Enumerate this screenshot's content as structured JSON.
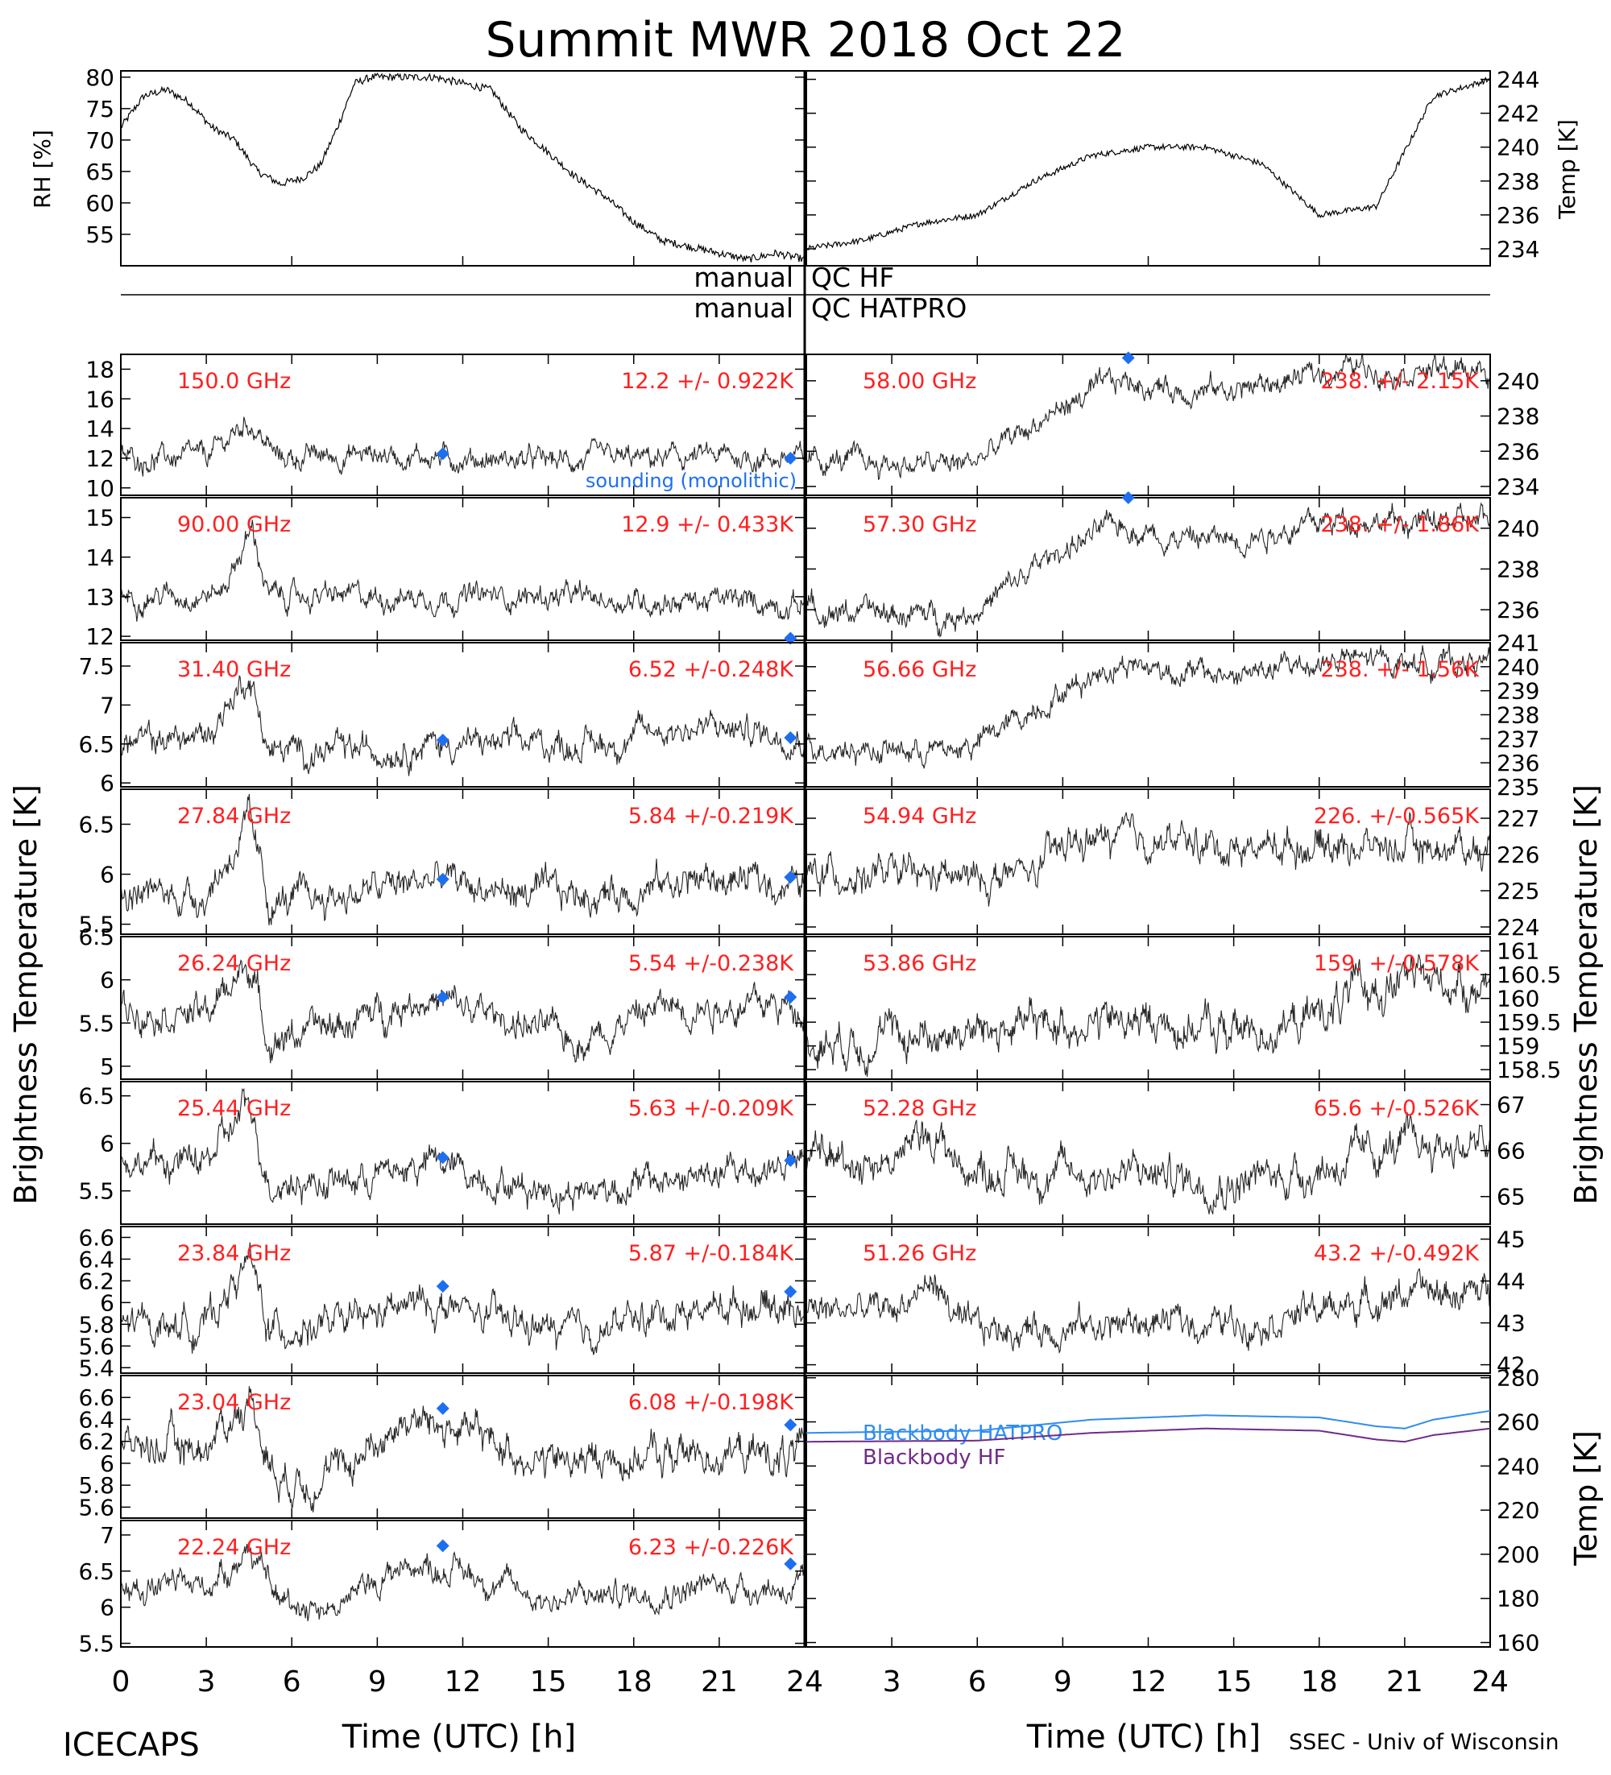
{
  "page": {
    "title": "Summit MWR 2018 Oct 22",
    "footer_left": "ICECAPS",
    "footer_right": "SSEC - Univ of Wisconsin",
    "left_ylabel": "Brightness Temperature [K]",
    "right_ylabel": "Brightness Temperature [K]",
    "xlabel": "Time (UTC) [h]",
    "qc_rows": [
      {
        "left": "manual",
        "right": "QC HF"
      },
      {
        "left": "manual",
        "right": "QC HATPRO"
      }
    ],
    "sounding_label": "sounding (monolithic)",
    "colors": {
      "freq_label": "#ff2020",
      "sounding": "#1e6ff0",
      "blackbody_hatpro": "#2f8cf2",
      "blackbody_hf": "#702a8a",
      "data": "#000000"
    }
  },
  "chart_data": [
    {
      "id": "rh",
      "type": "line",
      "ylabel": "RH [%]",
      "ylim": [
        50,
        81
      ],
      "yticks": [
        55,
        60,
        65,
        70,
        75,
        80
      ],
      "xlim": [
        0,
        12
      ],
      "x": [
        0,
        0.4,
        0.8,
        1.2,
        1.6,
        2.0,
        2.4,
        2.8,
        3.2,
        3.5,
        3.8,
        4.1,
        4.4,
        4.7,
        5.0,
        5.5,
        6.0,
        6.5,
        7.0,
        7.5,
        8.0,
        8.5,
        9.0,
        9.5,
        10.0,
        10.5,
        11.0,
        11.5,
        12.0
      ],
      "y": [
        72,
        77,
        78,
        76,
        72,
        70,
        65,
        63,
        64,
        66,
        72,
        79,
        80,
        80,
        80,
        80,
        79,
        78,
        72,
        68,
        64,
        61,
        57,
        54,
        53,
        52,
        51,
        52,
        51
      ]
    },
    {
      "id": "temp",
      "type": "line",
      "ylabel": "Temp [K]",
      "ylim": [
        233,
        244.5
      ],
      "yticks": [
        234,
        236,
        238,
        240,
        242,
        244
      ],
      "xlim": [
        12,
        24
      ],
      "x": [
        12,
        13,
        14,
        15,
        16,
        17,
        18,
        19,
        20,
        21,
        22,
        23,
        24
      ],
      "y": [
        234,
        234.5,
        235.5,
        236,
        238,
        239.5,
        240,
        240,
        239,
        236,
        236.5,
        243,
        244
      ]
    },
    {
      "id": "ch150",
      "label": "150.0 GHz",
      "stat": "12.2 +/- 0.922K",
      "side": "left",
      "ylim": [
        9.5,
        19
      ],
      "yticks": [
        10,
        12,
        14,
        16,
        18
      ],
      "profile": {
        "x": [
          0,
          3,
          4.5,
          5.5,
          9,
          12,
          15,
          18,
          21,
          24
        ],
        "y": [
          12,
          12,
          14.5,
          12,
          12.3,
          12,
          11.8,
          11.9,
          12.1,
          12
        ]
      },
      "noise": 0.9,
      "sounding": [
        {
          "x": 11.3,
          "y": 12.3
        },
        {
          "x": 23.5,
          "y": 12
        }
      ]
    },
    {
      "id": "ch90",
      "label": "90.00 GHz",
      "stat": "12.9 +/- 0.433K",
      "side": "left",
      "ylim": [
        11.9,
        15.5
      ],
      "yticks": [
        12,
        13,
        14,
        15
      ],
      "profile": {
        "x": [
          0,
          3.5,
          4.6,
          5.2,
          9,
          12,
          15,
          18,
          21,
          24
        ],
        "y": [
          13,
          13.1,
          14.7,
          13,
          13,
          13,
          13,
          12.9,
          12.9,
          12.8
        ]
      },
      "noise": 0.35,
      "sounding": [
        {
          "x": 23.5,
          "y": 11.95
        }
      ]
    },
    {
      "id": "ch3140",
      "label": "31.40 GHz",
      "stat": "6.52 +/-0.248K",
      "side": "left",
      "ylim": [
        5.95,
        7.8
      ],
      "yticks": [
        6.0,
        6.5,
        7.0,
        7.5
      ],
      "profile": {
        "x": [
          0,
          3,
          4.5,
          5.2,
          8,
          11,
          14,
          17,
          19,
          21,
          24
        ],
        "y": [
          6.5,
          6.6,
          7.4,
          6.4,
          6.4,
          6.5,
          6.5,
          6.5,
          6.7,
          6.7,
          6.6
        ]
      },
      "noise": 0.22,
      "sounding": [
        {
          "x": 11.3,
          "y": 6.55
        },
        {
          "x": 23.5,
          "y": 6.58
        }
      ]
    },
    {
      "id": "ch2784",
      "label": "27.84 GHz",
      "stat": "5.84 +/-0.219K",
      "side": "left",
      "ylim": [
        5.4,
        6.85
      ],
      "yticks": [
        5.5,
        6.0,
        6.5
      ],
      "profile": {
        "x": [
          0,
          3,
          4.5,
          5.2,
          8,
          11,
          14,
          17,
          20,
          24
        ],
        "y": [
          5.8,
          5.8,
          6.5,
          5.7,
          5.8,
          5.95,
          5.8,
          5.8,
          5.95,
          5.9
        ]
      },
      "noise": 0.2,
      "sounding": [
        {
          "x": 11.3,
          "y": 5.95
        },
        {
          "x": 23.5,
          "y": 5.97
        }
      ]
    },
    {
      "id": "ch2624",
      "label": "26.24 GHz",
      "stat": "5.54 +/-0.238K",
      "side": "left",
      "ylim": [
        4.85,
        6.5
      ],
      "yticks": [
        5.0,
        5.5,
        6.0,
        6.5
      ],
      "profile": {
        "x": [
          0,
          3,
          4.5,
          5.2,
          8,
          10.5,
          14,
          16,
          19,
          22,
          24
        ],
        "y": [
          5.7,
          5.6,
          6.2,
          5.3,
          5.5,
          5.8,
          5.5,
          5.3,
          5.7,
          5.7,
          5.7
        ]
      },
      "noise": 0.22,
      "sounding": [
        {
          "x": 11.3,
          "y": 5.8
        },
        {
          "x": 23.5,
          "y": 5.8
        }
      ]
    },
    {
      "id": "ch2544",
      "label": "25.44 GHz",
      "stat": "5.63 +/-0.209K",
      "side": "left",
      "ylim": [
        5.15,
        6.65
      ],
      "yticks": [
        5.5,
        6.0,
        6.5
      ],
      "profile": {
        "x": [
          0,
          3,
          4.5,
          5.2,
          8,
          11,
          14,
          16,
          19,
          22,
          24
        ],
        "y": [
          5.8,
          5.8,
          6.4,
          5.6,
          5.6,
          5.8,
          5.55,
          5.5,
          5.6,
          5.7,
          5.8
        ]
      },
      "noise": 0.2,
      "sounding": [
        {
          "x": 11.3,
          "y": 5.85
        },
        {
          "x": 23.5,
          "y": 5.82
        }
      ]
    },
    {
      "id": "ch2384",
      "label": "23.84 GHz",
      "stat": "5.87 +/-0.184K",
      "side": "left",
      "ylim": [
        5.35,
        6.7
      ],
      "yticks": [
        5.4,
        5.6,
        5.8,
        6.0,
        6.2,
        6.4,
        6.6
      ],
      "profile": {
        "x": [
          0,
          3,
          4.5,
          5.2,
          8,
          10.5,
          14,
          16,
          19,
          22,
          24
        ],
        "y": [
          5.8,
          5.8,
          6.4,
          5.75,
          5.8,
          6.0,
          5.8,
          5.7,
          5.9,
          6.0,
          5.95
        ]
      },
      "noise": 0.18,
      "sounding": [
        {
          "x": 11.3,
          "y": 6.15
        },
        {
          "x": 23.5,
          "y": 6.1
        }
      ]
    },
    {
      "id": "ch2304",
      "label": "23.04 GHz",
      "stat": "6.08 +/-0.198K",
      "side": "left",
      "ylim": [
        5.5,
        6.8
      ],
      "yticks": [
        5.6,
        5.8,
        6.0,
        6.2,
        6.4,
        6.6
      ],
      "profile": {
        "x": [
          0,
          3,
          4.5,
          5.5,
          7.5,
          10,
          12,
          15,
          18,
          21,
          24
        ],
        "y": [
          6.15,
          6.15,
          6.6,
          5.85,
          5.9,
          6.4,
          6.3,
          6.0,
          6.05,
          6.1,
          6.05
        ]
      },
      "noise": 0.2,
      "sounding": [
        {
          "x": 11.3,
          "y": 6.5
        },
        {
          "x": 23.5,
          "y": 6.35
        }
      ]
    },
    {
      "id": "ch2224",
      "label": "22.24 GHz",
      "stat": "6.23 +/-0.226K",
      "side": "left",
      "ylim": [
        5.45,
        7.2
      ],
      "yticks": [
        5.5,
        6.0,
        6.5,
        7.0
      ],
      "profile": {
        "x": [
          0,
          3,
          4.5,
          5.5,
          7.5,
          10,
          12,
          15,
          18,
          21,
          24
        ],
        "y": [
          6.3,
          6.3,
          6.8,
          6.1,
          6.0,
          6.6,
          6.5,
          6.1,
          6.2,
          6.3,
          6.25
        ]
      },
      "noise": 0.22,
      "sounding": [
        {
          "x": 11.3,
          "y": 6.85
        },
        {
          "x": 23.5,
          "y": 6.6
        }
      ]
    },
    {
      "id": "ch5800",
      "label": "58.00 GHz",
      "stat": "238.  +/- 2.15K",
      "side": "right",
      "ylim": [
        233.5,
        241.5
      ],
      "yticks": [
        234,
        236,
        238,
        240
      ],
      "profile": {
        "x": [
          0,
          3,
          5,
          6,
          9,
          11,
          13,
          15,
          17,
          19,
          21,
          24
        ],
        "y": [
          235.5,
          235.3,
          235.2,
          235.5,
          238.5,
          240,
          239.5,
          239.5,
          240,
          240.8,
          240.6,
          240.6
        ]
      },
      "noise": 0.8,
      "sounding": [
        {
          "x": 11.3,
          "y": 241.3
        }
      ]
    },
    {
      "id": "ch5730",
      "label": "57.30 GHz",
      "stat": "238.  +/- 1.86K",
      "side": "right",
      "ylim": [
        234.5,
        241.5
      ],
      "yticks": [
        236,
        238,
        240
      ],
      "profile": {
        "x": [
          0,
          3,
          5,
          6,
          9,
          11,
          13,
          15,
          17,
          19,
          21,
          24
        ],
        "y": [
          236,
          235.8,
          235.7,
          236,
          239,
          240.2,
          239.5,
          239.5,
          240,
          240.5,
          240.3,
          240.3
        ]
      },
      "noise": 0.7,
      "sounding": [
        {
          "x": 11.3,
          "y": 241.5
        }
      ]
    },
    {
      "id": "ch5666",
      "label": "56.66 GHz",
      "stat": "238.  +/- 1.56K",
      "side": "right",
      "ylim": [
        235,
        241
      ],
      "yticks": [
        235,
        236,
        237,
        238,
        239,
        240,
        241
      ],
      "profile": {
        "x": [
          0,
          3,
          5,
          6,
          9,
          11,
          13,
          15,
          17,
          19,
          21,
          24
        ],
        "y": [
          236.8,
          236.5,
          236.5,
          236.8,
          239,
          240.2,
          239.8,
          239.6,
          240,
          240.3,
          240.2,
          240.2
        ]
      },
      "noise": 0.6,
      "sounding": []
    },
    {
      "id": "ch5494",
      "label": "54.94 GHz",
      "stat": "226.  +/-0.565K",
      "side": "right",
      "ylim": [
        223.8,
        227.8
      ],
      "yticks": [
        224,
        225,
        226,
        227
      ],
      "profile": {
        "x": [
          0,
          3,
          6,
          8,
          9,
          10,
          12,
          15,
          18,
          21,
          24
        ],
        "y": [
          225.5,
          225.4,
          225.3,
          225.5,
          226.2,
          226.4,
          226.4,
          226.2,
          226.3,
          226.2,
          226.2
        ]
      },
      "noise": 0.55,
      "sounding": []
    },
    {
      "id": "ch5386",
      "label": "53.86 GHz",
      "stat": "159.  +/-0.578K",
      "side": "right",
      "ylim": [
        158.3,
        161.3
      ],
      "yticks": [
        158.5,
        159.0,
        159.5,
        160.0,
        160.5,
        161.0
      ],
      "profile": {
        "x": [
          0,
          3,
          6,
          9,
          12,
          15,
          17,
          19,
          21,
          24
        ],
        "y": [
          159.1,
          159.2,
          159.3,
          159.5,
          159.5,
          159.3,
          159.4,
          160.0,
          160.4,
          160.3
        ]
      },
      "noise": 0.5,
      "sounding": []
    },
    {
      "id": "ch5228",
      "label": "52.28 GHz",
      "stat": "65.6 +/-0.526K",
      "side": "right",
      "ylim": [
        64.4,
        67.5
      ],
      "yticks": [
        65,
        66,
        67
      ],
      "profile": {
        "x": [
          0,
          3,
          4.5,
          5.5,
          9,
          12,
          15,
          18,
          21,
          24
        ],
        "y": [
          65.8,
          65.8,
          66.4,
          65.6,
          65.5,
          65.5,
          65.3,
          65.6,
          66.1,
          66.1
        ]
      },
      "noise": 0.5,
      "sounding": []
    },
    {
      "id": "ch5126",
      "label": "51.26 GHz",
      "stat": "43.2 +/-0.492K",
      "side": "right",
      "ylim": [
        41.8,
        45.3
      ],
      "yticks": [
        42,
        43,
        44,
        45
      ],
      "profile": {
        "x": [
          0,
          3,
          4.5,
          5.5,
          9,
          12,
          15,
          18,
          21,
          24
        ],
        "y": [
          43.3,
          43.3,
          44.0,
          42.8,
          42.9,
          43.0,
          43.0,
          43.3,
          43.7,
          43.7
        ]
      },
      "noise": 0.45,
      "sounding": []
    },
    {
      "id": "blackbody",
      "type": "line",
      "side": "right",
      "ylabel": "Temp [K]",
      "ylim": [
        158,
        281
      ],
      "yticks": [
        160,
        180,
        200,
        220,
        240,
        260,
        280
      ],
      "series": [
        {
          "name": "Blackbody HATPRO",
          "x": [
            0,
            6,
            10,
            14,
            18,
            20,
            21,
            22,
            24
          ],
          "y": [
            255,
            256,
            261,
            263,
            262,
            258,
            257,
            261,
            265
          ]
        },
        {
          "name": "Blackbody HF",
          "x": [
            0,
            6,
            10,
            14,
            18,
            20,
            21,
            22,
            24
          ],
          "y": [
            251,
            251.5,
            255,
            257,
            256,
            252,
            251,
            254,
            257
          ]
        }
      ]
    }
  ],
  "xticks": [
    0,
    3,
    6,
    9,
    12,
    15,
    18,
    21,
    24
  ]
}
